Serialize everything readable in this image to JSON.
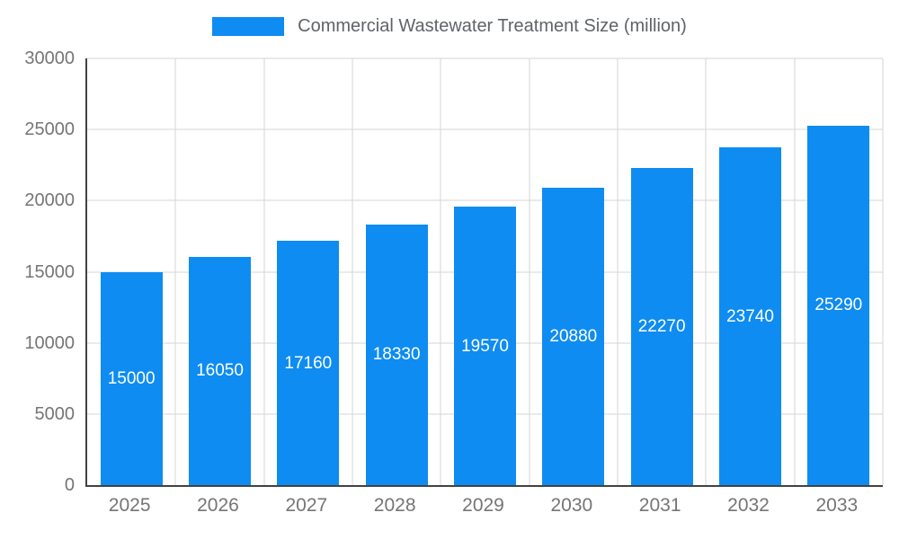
{
  "chart_data": {
    "type": "bar",
    "title": "Commercial Wastewater Treatment Size (million)",
    "categories": [
      "2025",
      "2026",
      "2027",
      "2028",
      "2029",
      "2030",
      "2031",
      "2032",
      "2033"
    ],
    "values": [
      15000,
      16050,
      17160,
      18330,
      19570,
      20880,
      22270,
      23740,
      25290
    ],
    "xlabel": "",
    "ylabel": "",
    "ylim": [
      0,
      30000
    ],
    "ytick_interval": 5000,
    "grid": true,
    "legend_position": "top",
    "bar_color": "#0e8cf1",
    "bar_label_color": "#ffffff",
    "axis_color": "#424242",
    "grid_color": "#d6d6d6",
    "tick_label_color": "#757575",
    "legend_text_color": "#5f6368",
    "background_color": "#ffffff"
  }
}
